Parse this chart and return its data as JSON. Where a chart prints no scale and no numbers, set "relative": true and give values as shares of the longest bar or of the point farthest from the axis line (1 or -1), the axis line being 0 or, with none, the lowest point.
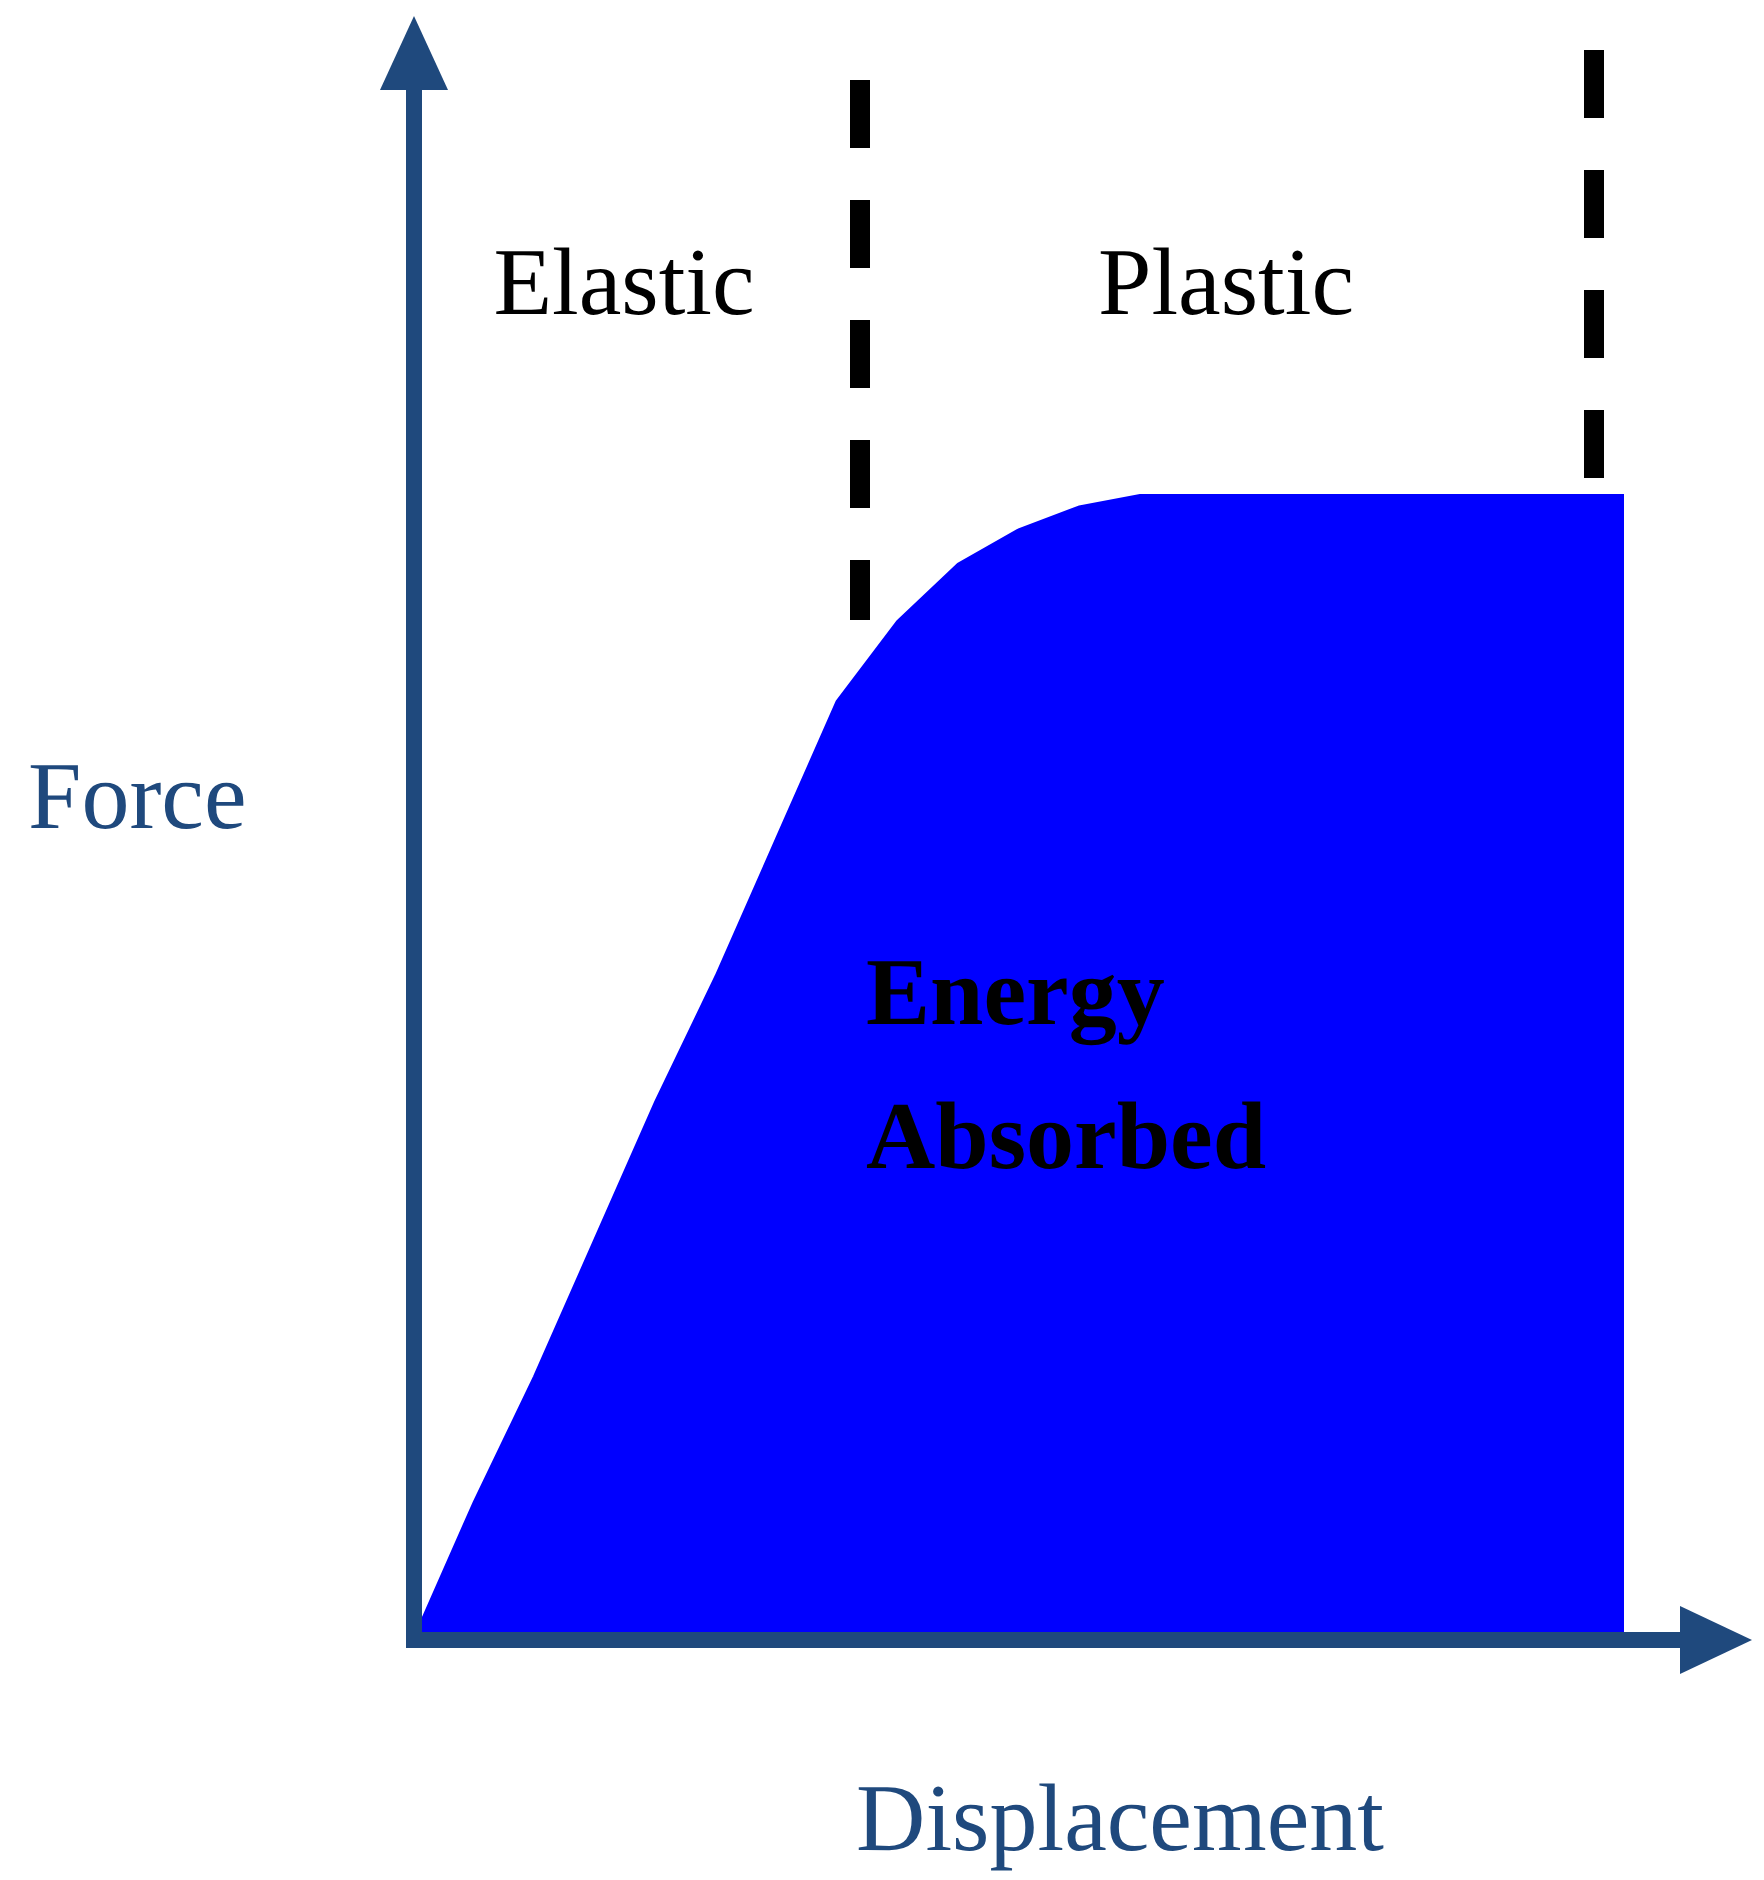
{
  "chart_data": {
    "type": "area",
    "relative": true,
    "xlabel": "Displacement",
    "ylabel": "Force",
    "categories": [
      null,
      null,
      null,
      null,
      null,
      null,
      null,
      null,
      null,
      null,
      null,
      null,
      null,
      null,
      null,
      null,
      null,
      null,
      null,
      null,
      null
    ],
    "series": [
      {
        "color": "#0000ff",
        "values": [
          0,
          0.12,
          0.23,
          0.35,
          0.47,
          0.58,
          0.7,
          0.82,
          0.89,
          0.94,
          0.97,
          0.99,
          1,
          1,
          1,
          1,
          1,
          1,
          1,
          1,
          1
        ]
      }
    ],
    "tick_labels": false,
    "legend": false,
    "annotations": [
      "Elastic",
      "Plastic",
      "Energy Absorbed"
    ]
  }
}
